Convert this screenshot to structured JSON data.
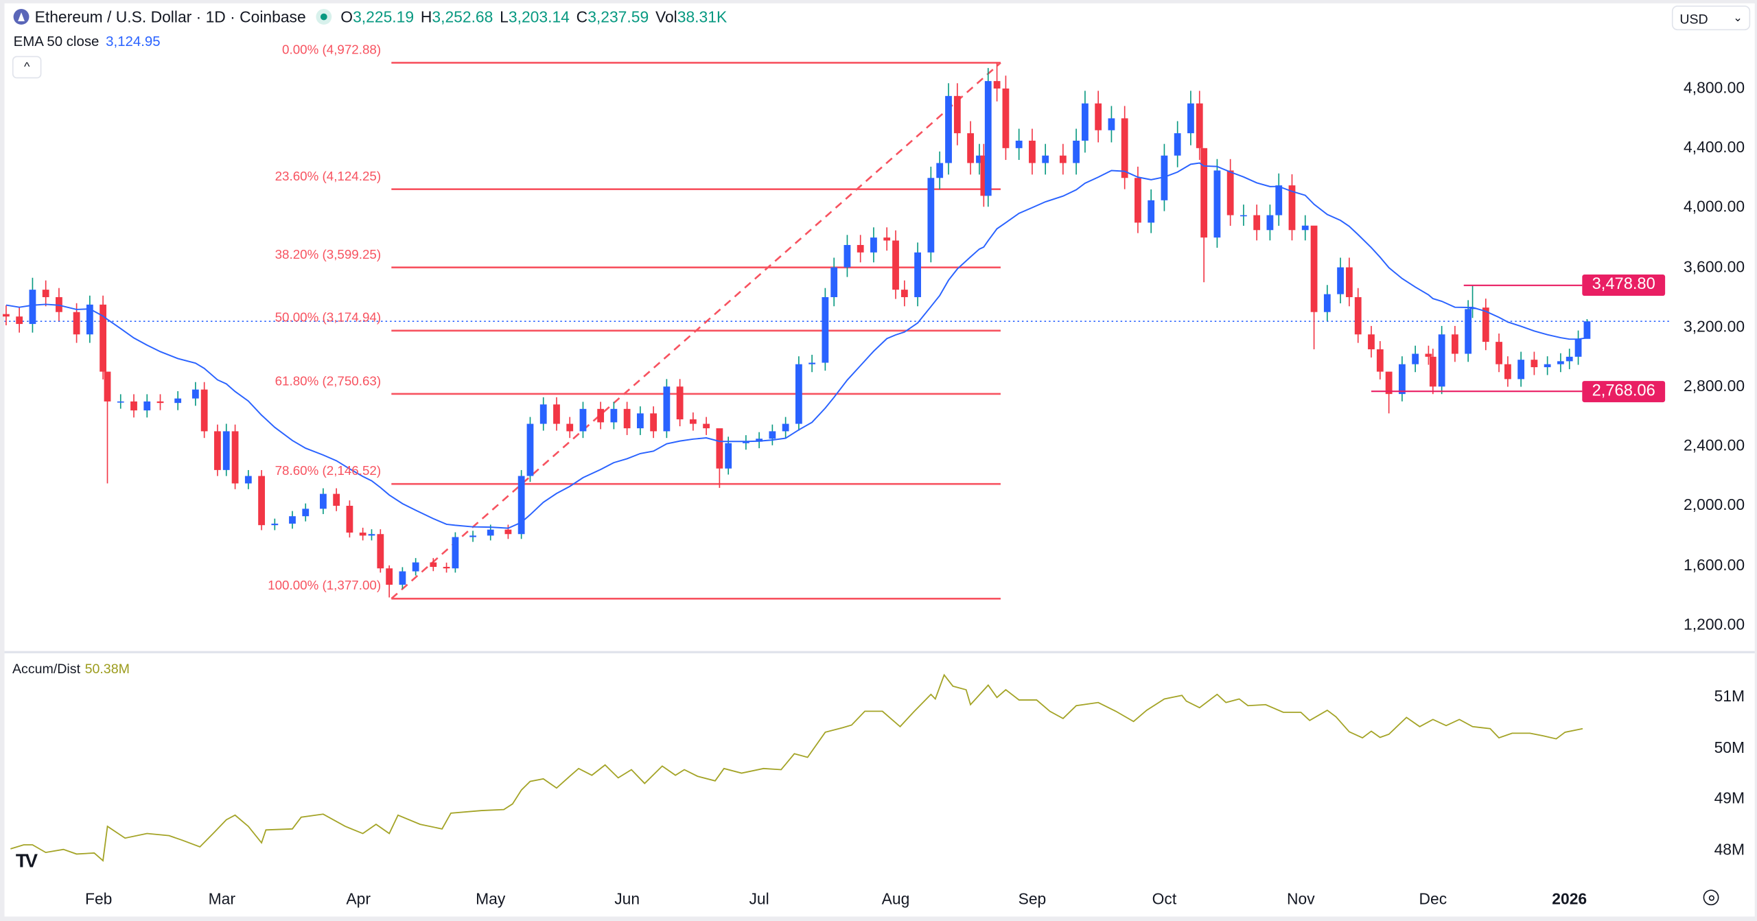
{
  "header": {
    "symbol_title": "Ethereum / U.S. Dollar · 1D · Coinbase",
    "open_label": "O",
    "open": "3,225.19",
    "high_label": "H",
    "high": "3,252.68",
    "low_label": "L",
    "low": "3,203.14",
    "close_label": "C",
    "close": "3,237.59",
    "vol_label": "Vol",
    "vol": "38.31K"
  },
  "indicator": {
    "label": "EMA 50 close",
    "value": "3,124.95",
    "color": "#2962ff"
  },
  "collapse_icon": "^",
  "currency": {
    "selected": "USD"
  },
  "colors": {
    "up_body": "#2962ff",
    "up_wick": "#089981",
    "down": "#f23645",
    "fib": "#f7525f",
    "level": "#e91e63",
    "accum": "#a3a325"
  },
  "chart_data": [
    {
      "type": "candlestick",
      "price_axis": {
        "ticks": [
          "4,800.00",
          "4,400.00",
          "4,000.00",
          "3,600.00",
          "3,200.00",
          "2,800.00",
          "2,400.00",
          "2,000.00",
          "1,600.00",
          "1,200.00"
        ],
        "tick_values": [
          4800,
          4400,
          4000,
          3600,
          3200,
          2800,
          2400,
          2000,
          1600,
          1200
        ]
      },
      "time_axis": {
        "ticks": [
          "Feb",
          "Mar",
          "Apr",
          "May",
          "Jun",
          "Jul",
          "Aug",
          "Sep",
          "Oct",
          "Nov",
          "Dec",
          "2026"
        ],
        "tick_dates": [
          "2025-02-01",
          "2025-03-01",
          "2025-04-01",
          "2025-05-01",
          "2025-06-01",
          "2025-07-01",
          "2025-08-01",
          "2025-09-01",
          "2025-10-01",
          "2025-11-01",
          "2025-12-01",
          "2026-01-01"
        ]
      },
      "candles_close": [
        [
          "2025-01-11",
          3270
        ],
        [
          "2025-01-14",
          3220
        ],
        [
          "2025-01-17",
          3450,
          3530
        ],
        [
          "2025-01-20",
          3400
        ],
        [
          "2025-01-23",
          3300
        ],
        [
          "2025-01-27",
          3150
        ],
        [
          "2025-01-30",
          3350
        ],
        [
          "2025-02-02",
          2900
        ],
        [
          "2025-02-03",
          2700,
          2900,
          2150
        ],
        [
          "2025-02-06",
          2700
        ],
        [
          "2025-02-09",
          2640
        ],
        [
          "2025-02-12",
          2700
        ],
        [
          "2025-02-15",
          2690
        ],
        [
          "2025-02-19",
          2720
        ],
        [
          "2025-02-23",
          2780
        ],
        [
          "2025-02-25",
          2500
        ],
        [
          "2025-02-28",
          2240
        ],
        [
          "2025-03-02",
          2500,
          2550
        ],
        [
          "2025-03-04",
          2150
        ],
        [
          "2025-03-07",
          2200
        ],
        [
          "2025-03-10",
          1870
        ],
        [
          "2025-03-13",
          1880
        ],
        [
          "2025-03-17",
          1930
        ],
        [
          "2025-03-20",
          1980
        ],
        [
          "2025-03-24",
          2080
        ],
        [
          "2025-03-27",
          2000
        ],
        [
          "2025-03-30",
          1820
        ],
        [
          "2025-04-02",
          1800
        ],
        [
          "2025-04-04",
          1810
        ],
        [
          "2025-04-06",
          1580
        ],
        [
          "2025-04-08",
          1470,
          1600,
          1385
        ],
        [
          "2025-04-11",
          1560
        ],
        [
          "2025-04-14",
          1620
        ],
        [
          "2025-04-18",
          1590
        ],
        [
          "2025-04-21",
          1580
        ],
        [
          "2025-04-23",
          1790
        ],
        [
          "2025-04-27",
          1800
        ],
        [
          "2025-05-01",
          1840
        ],
        [
          "2025-05-05",
          1810
        ],
        [
          "2025-05-08",
          2200
        ],
        [
          "2025-05-10",
          2550
        ],
        [
          "2025-05-13",
          2680
        ],
        [
          "2025-05-16",
          2550
        ],
        [
          "2025-05-19",
          2500
        ],
        [
          "2025-05-22",
          2650
        ],
        [
          "2025-05-26",
          2560
        ],
        [
          "2025-05-29",
          2650
        ],
        [
          "2025-06-01",
          2520
        ],
        [
          "2025-06-04",
          2620
        ],
        [
          "2025-06-07",
          2500
        ],
        [
          "2025-06-10",
          2800
        ],
        [
          "2025-06-13",
          2580
        ],
        [
          "2025-06-16",
          2550
        ],
        [
          "2025-06-19",
          2520
        ],
        [
          "2025-06-22",
          2250,
          2400,
          2120
        ],
        [
          "2025-06-24",
          2420
        ],
        [
          "2025-06-28",
          2430
        ],
        [
          "2025-07-01",
          2450
        ],
        [
          "2025-07-04",
          2500
        ],
        [
          "2025-07-07",
          2550
        ],
        [
          "2025-07-10",
          2950
        ],
        [
          "2025-07-13",
          2960
        ],
        [
          "2025-07-16",
          3400
        ],
        [
          "2025-07-18",
          3600
        ],
        [
          "2025-07-21",
          3750
        ],
        [
          "2025-07-24",
          3700
        ],
        [
          "2025-07-27",
          3800
        ],
        [
          "2025-07-30",
          3780
        ],
        [
          "2025-08-01",
          3450
        ],
        [
          "2025-08-03",
          3400
        ],
        [
          "2025-08-06",
          3700
        ],
        [
          "2025-08-09",
          4200
        ],
        [
          "2025-08-11",
          4300
        ],
        [
          "2025-08-13",
          4750
        ],
        [
          "2025-08-15",
          4500
        ],
        [
          "2025-08-18",
          4300
        ],
        [
          "2025-08-20",
          4350
        ],
        [
          "2025-08-21",
          4080
        ],
        [
          "2025-08-22",
          4850
        ],
        [
          "2025-08-24",
          4800,
          4972
        ],
        [
          "2025-08-26",
          4400
        ],
        [
          "2025-08-29",
          4450
        ],
        [
          "2025-09-01",
          4300
        ],
        [
          "2025-09-04",
          4350
        ],
        [
          "2025-09-08",
          4300
        ],
        [
          "2025-09-11",
          4450
        ],
        [
          "2025-09-13",
          4700
        ],
        [
          "2025-09-16",
          4520
        ],
        [
          "2025-09-19",
          4600
        ],
        [
          "2025-09-22",
          4200
        ],
        [
          "2025-09-25",
          3900
        ],
        [
          "2025-09-28",
          4050
        ],
        [
          "2025-10-01",
          4350
        ],
        [
          "2025-10-04",
          4500
        ],
        [
          "2025-10-07",
          4700
        ],
        [
          "2025-10-09",
          4400
        ],
        [
          "2025-10-10",
          3800,
          4400,
          3500
        ],
        [
          "2025-10-13",
          4250
        ],
        [
          "2025-10-16",
          3950
        ],
        [
          "2025-10-19",
          3950
        ],
        [
          "2025-10-22",
          3850
        ],
        [
          "2025-10-25",
          3950
        ],
        [
          "2025-10-27",
          4150,
          4230
        ],
        [
          "2025-10-30",
          3850
        ],
        [
          "2025-11-02",
          3880
        ],
        [
          "2025-11-04",
          3300,
          3550,
          3050
        ],
        [
          "2025-11-07",
          3420
        ],
        [
          "2025-11-10",
          3600
        ],
        [
          "2025-11-12",
          3400
        ],
        [
          "2025-11-14",
          3150
        ],
        [
          "2025-11-17",
          3050
        ],
        [
          "2025-11-19",
          2900
        ],
        [
          "2025-11-21",
          2750,
          2900,
          2620
        ],
        [
          "2025-11-24",
          2950
        ],
        [
          "2025-11-27",
          3020
        ],
        [
          "2025-11-30",
          3000
        ],
        [
          "2025-12-01",
          2800
        ],
        [
          "2025-12-03",
          3150
        ],
        [
          "2025-12-06",
          3020
        ],
        [
          "2025-12-09",
          3320
        ],
        [
          "2025-12-10",
          3330,
          3478
        ],
        [
          "2025-12-13",
          3100
        ],
        [
          "2025-12-16",
          2950
        ],
        [
          "2025-12-18",
          2850
        ],
        [
          "2025-12-21",
          2980
        ],
        [
          "2025-12-24",
          2930
        ],
        [
          "2025-12-27",
          2950
        ],
        [
          "2025-12-30",
          2970
        ],
        [
          "2026-01-01",
          3000
        ],
        [
          "2026-01-03",
          3120
        ],
        [
          "2026-01-05",
          3237.59,
          3252.68,
          3203.14
        ]
      ],
      "last_price": 3237.59,
      "fibonacci": {
        "from": {
          "date": "2025-04-09",
          "price": 1377.0
        },
        "to": {
          "date": "2025-08-24",
          "price": 4972.88
        },
        "levels": [
          {
            "label": "0.00% (4,972.88)",
            "price": 4972.88
          },
          {
            "label": "23.60% (4,124.25)",
            "price": 4124.25
          },
          {
            "label": "38.20% (3,599.25)",
            "price": 3599.25
          },
          {
            "label": "50.00% (3,174.94)",
            "price": 3174.94
          },
          {
            "label": "61.80% (2,750.63)",
            "price": 2750.63
          },
          {
            "label": "78.60% (2,146.52)",
            "price": 2146.52
          },
          {
            "label": "100.00% (1,377.00)",
            "price": 1377.0
          }
        ]
      },
      "horizontal_levels": [
        {
          "label": "3,478.80",
          "price": 3478.8,
          "from_date": "2025-12-08"
        },
        {
          "label": "2,768.06",
          "price": 2768.06,
          "from_date": "2025-11-17"
        }
      ]
    },
    {
      "type": "line",
      "name": "Accum/Dist",
      "value_label": "50.38M",
      "y_axis": {
        "ticks": [
          "51M",
          "50M",
          "49M",
          "48M"
        ],
        "tick_values": [
          51,
          50,
          49,
          48
        ],
        "unit": "M"
      },
      "points": [
        [
          "2025-01-12",
          48.03
        ],
        [
          "2025-01-15",
          48.11
        ],
        [
          "2025-01-17",
          48.11
        ],
        [
          "2025-01-20",
          47.96
        ],
        [
          "2025-01-24",
          48.02
        ],
        [
          "2025-01-27",
          47.93
        ],
        [
          "2025-01-31",
          47.95
        ],
        [
          "2025-02-02",
          47.8
        ],
        [
          "2025-02-03",
          48.47
        ],
        [
          "2025-02-07",
          48.24
        ],
        [
          "2025-02-12",
          48.33
        ],
        [
          "2025-02-17",
          48.29
        ],
        [
          "2025-02-20",
          48.2
        ],
        [
          "2025-02-24",
          48.07
        ],
        [
          "2025-02-27",
          48.33
        ],
        [
          "2025-03-02",
          48.6
        ],
        [
          "2025-03-04",
          48.69
        ],
        [
          "2025-03-07",
          48.47
        ],
        [
          "2025-03-10",
          48.15
        ],
        [
          "2025-03-11",
          48.4
        ],
        [
          "2025-03-17",
          48.42
        ],
        [
          "2025-03-19",
          48.65
        ],
        [
          "2025-03-24",
          48.71
        ],
        [
          "2025-03-29",
          48.47
        ],
        [
          "2025-04-02",
          48.33
        ],
        [
          "2025-04-05",
          48.51
        ],
        [
          "2025-04-08",
          48.33
        ],
        [
          "2025-04-10",
          48.69
        ],
        [
          "2025-04-15",
          48.51
        ],
        [
          "2025-04-20",
          48.42
        ],
        [
          "2025-04-22",
          48.73
        ],
        [
          "2025-04-29",
          48.78
        ],
        [
          "2025-05-04",
          48.8
        ],
        [
          "2025-05-06",
          48.91
        ],
        [
          "2025-05-08",
          49.18
        ],
        [
          "2025-05-10",
          49.35
        ],
        [
          "2025-05-13",
          49.4
        ],
        [
          "2025-05-16",
          49.22
        ],
        [
          "2025-05-19",
          49.45
        ],
        [
          "2025-05-21",
          49.6
        ],
        [
          "2025-05-24",
          49.47
        ],
        [
          "2025-05-27",
          49.67
        ],
        [
          "2025-05-30",
          49.42
        ],
        [
          "2025-06-02",
          49.58
        ],
        [
          "2025-06-05",
          49.31
        ],
        [
          "2025-06-09",
          49.65
        ],
        [
          "2025-06-12",
          49.47
        ],
        [
          "2025-06-14",
          49.58
        ],
        [
          "2025-06-17",
          49.45
        ],
        [
          "2025-06-21",
          49.36
        ],
        [
          "2025-06-23",
          49.6
        ],
        [
          "2025-06-27",
          49.51
        ],
        [
          "2025-07-02",
          49.6
        ],
        [
          "2025-07-06",
          49.58
        ],
        [
          "2025-07-09",
          49.89
        ],
        [
          "2025-07-12",
          49.82
        ],
        [
          "2025-07-16",
          50.31
        ],
        [
          "2025-07-20",
          50.4
        ],
        [
          "2025-07-22",
          50.45
        ],
        [
          "2025-07-25",
          50.72
        ],
        [
          "2025-07-29",
          50.72
        ],
        [
          "2025-08-02",
          50.42
        ],
        [
          "2025-08-05",
          50.7
        ],
        [
          "2025-08-09",
          51.05
        ],
        [
          "2025-08-10",
          50.96
        ],
        [
          "2025-08-12",
          51.43
        ],
        [
          "2025-08-14",
          51.21
        ],
        [
          "2025-08-17",
          51.14
        ],
        [
          "2025-08-18",
          50.85
        ],
        [
          "2025-08-22",
          51.23
        ],
        [
          "2025-08-24",
          50.99
        ],
        [
          "2025-08-26",
          51.14
        ],
        [
          "2025-08-29",
          50.94
        ],
        [
          "2025-09-02",
          50.94
        ],
        [
          "2025-09-05",
          50.72
        ],
        [
          "2025-09-08",
          50.58
        ],
        [
          "2025-09-11",
          50.83
        ],
        [
          "2025-09-16",
          50.89
        ],
        [
          "2025-09-20",
          50.72
        ],
        [
          "2025-09-24",
          50.52
        ],
        [
          "2025-09-27",
          50.74
        ],
        [
          "2025-10-01",
          50.96
        ],
        [
          "2025-10-05",
          51.03
        ],
        [
          "2025-10-06",
          50.92
        ],
        [
          "2025-10-09",
          50.79
        ],
        [
          "2025-10-13",
          51.05
        ],
        [
          "2025-10-15",
          50.89
        ],
        [
          "2025-10-18",
          50.96
        ],
        [
          "2025-10-20",
          50.83
        ],
        [
          "2025-10-24",
          50.85
        ],
        [
          "2025-10-28",
          50.7
        ],
        [
          "2025-11-01",
          50.7
        ],
        [
          "2025-11-03",
          50.54
        ],
        [
          "2025-11-07",
          50.74
        ],
        [
          "2025-11-09",
          50.61
        ],
        [
          "2025-11-12",
          50.32
        ],
        [
          "2025-11-15",
          50.2
        ],
        [
          "2025-11-17",
          50.33
        ],
        [
          "2025-11-19",
          50.21
        ],
        [
          "2025-11-21",
          50.27
        ],
        [
          "2025-11-25",
          50.6
        ],
        [
          "2025-11-28",
          50.42
        ],
        [
          "2025-12-01",
          50.56
        ],
        [
          "2025-12-04",
          50.44
        ],
        [
          "2025-12-07",
          50.56
        ],
        [
          "2025-12-10",
          50.42
        ],
        [
          "2025-12-14",
          50.38
        ],
        [
          "2025-12-16",
          50.2
        ],
        [
          "2025-12-19",
          50.29
        ],
        [
          "2025-12-23",
          50.29
        ],
        [
          "2025-12-26",
          50.24
        ],
        [
          "2025-12-29",
          50.18
        ],
        [
          "2025-12-31",
          50.31
        ],
        [
          "2026-01-04",
          50.38
        ]
      ]
    }
  ]
}
